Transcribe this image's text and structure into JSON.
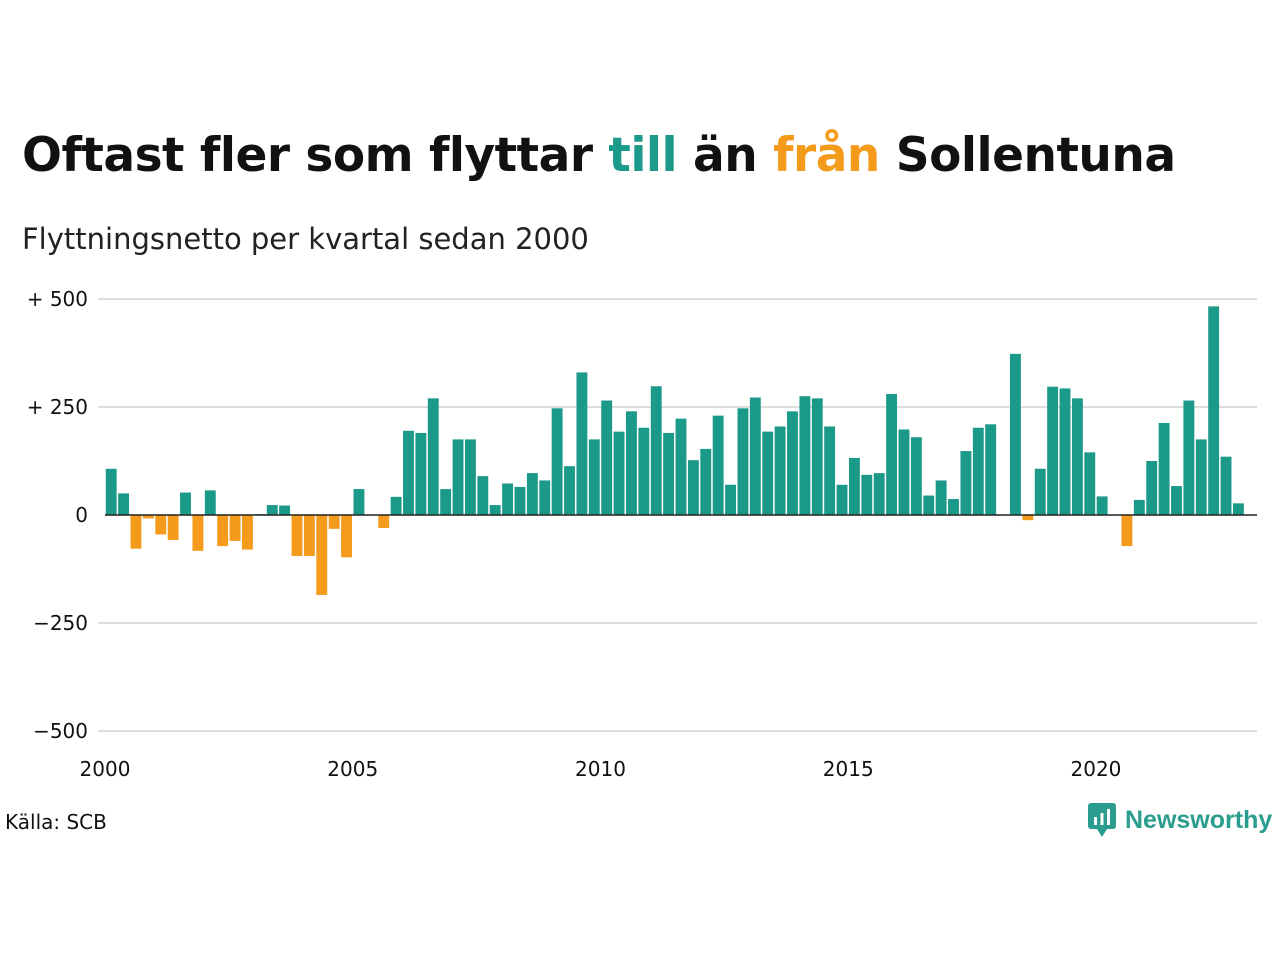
{
  "title": {
    "part1": "Oftast fler som flyttar ",
    "till": "till",
    "part2": " än ",
    "fran": "från",
    "part3": " Sollentuna"
  },
  "subtitle": "Flyttningsnetto per kvartal sedan 2000",
  "source": "Källa: SCB",
  "brand": "Newsworthy",
  "colors": {
    "positive": "#1b9a8a",
    "negative": "#f59b1c",
    "grid": "#dddddd",
    "zero": "#222222"
  },
  "chart_data": {
    "type": "bar",
    "title": "Oftast fler som flyttar till än från Sollentuna",
    "subtitle": "Flyttningsnetto per kvartal sedan 2000",
    "xlabel": "",
    "ylabel": "",
    "x_start": 2000.0,
    "period_per_bar": 0.25,
    "ylim": [
      -500,
      500
    ],
    "xlim": [
      2000,
      2023.25
    ],
    "yticks": [
      500,
      250,
      0,
      -250,
      -500
    ],
    "ytick_labels": [
      "+ 500",
      "+ 250",
      "0",
      "−250",
      "−500"
    ],
    "xticks": [
      2000,
      2005,
      2010,
      2015,
      2020
    ],
    "xtick_labels": [
      "2000",
      "2005",
      "2010",
      "2015",
      "2020"
    ],
    "grid": true,
    "legend": "none",
    "values": [
      107,
      50,
      -78,
      -8,
      -45,
      -58,
      52,
      -83,
      57,
      -72,
      -60,
      -80,
      2,
      23,
      22,
      -95,
      -95,
      -185,
      -32,
      -98,
      60,
      0,
      -30,
      42,
      195,
      190,
      270,
      60,
      175,
      175,
      90,
      23,
      73,
      65,
      97,
      80,
      247,
      113,
      330,
      175,
      265,
      193,
      240,
      202,
      298,
      190,
      223,
      127,
      153,
      230,
      70,
      247,
      272,
      193,
      205,
      240,
      275,
      270,
      205,
      70,
      132,
      93,
      97,
      280,
      198,
      180,
      45,
      80,
      37,
      148,
      202,
      210,
      0,
      373,
      -12,
      107,
      297,
      293,
      270,
      145,
      43,
      0,
      -72,
      35,
      125,
      213,
      67,
      265,
      175,
      483,
      135,
      27
    ]
  }
}
